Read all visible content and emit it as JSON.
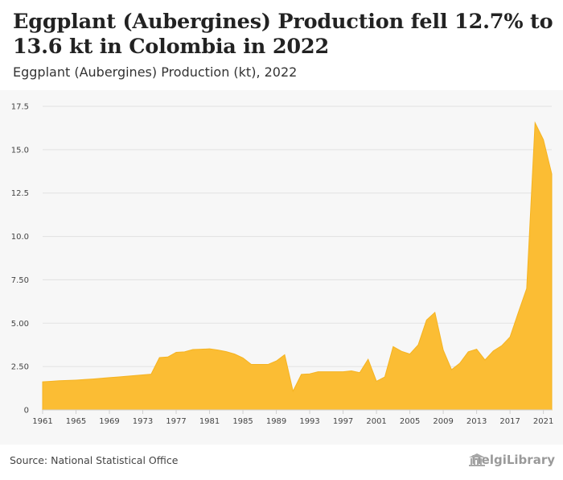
{
  "header": {
    "title": "Eggplant (Aubergines) Production fell 12.7% to 13.6 kt in Colombia in 2022",
    "subtitle": "Eggplant (Aubergines) Production (kt), 2022"
  },
  "footer": {
    "source": "Source: National Statistical Office",
    "brand": "HelgiLibrary"
  },
  "colors": {
    "area_fill": "#fbbd34",
    "area_stroke": "#f5b321",
    "grid": "#e2e2e2",
    "chart_bg": "#f7f7f7"
  },
  "icons": {
    "brand": "library-building-icon"
  },
  "chart_data": {
    "type": "area",
    "title": "",
    "xlabel": "",
    "ylabel": "",
    "ylim": [
      0,
      17.5
    ],
    "grid": true,
    "y_ticks": [
      0,
      2.5,
      5,
      7.5,
      10,
      12.5,
      15,
      17.5
    ],
    "y_tick_labels": [
      "0",
      "2.50",
      "5.00",
      "7.50",
      "10.0",
      "12.5",
      "15.0",
      "17.5"
    ],
    "x_ticks": [
      1961,
      1965,
      1969,
      1973,
      1977,
      1981,
      1985,
      1989,
      1993,
      1997,
      2001,
      2005,
      2009,
      2013,
      2017,
      2021
    ],
    "x": [
      1961,
      1962,
      1963,
      1964,
      1965,
      1966,
      1967,
      1968,
      1969,
      1970,
      1971,
      1972,
      1973,
      1974,
      1975,
      1976,
      1977,
      1978,
      1979,
      1980,
      1981,
      1982,
      1983,
      1984,
      1985,
      1986,
      1987,
      1988,
      1989,
      1990,
      1991,
      1992,
      1993,
      1994,
      1995,
      1996,
      1997,
      1998,
      1999,
      2000,
      2001,
      2002,
      2003,
      2004,
      2005,
      2006,
      2007,
      2008,
      2009,
      2010,
      2011,
      2012,
      2013,
      2014,
      2015,
      2016,
      2017,
      2018,
      2019,
      2020,
      2021,
      2022
    ],
    "series": [
      {
        "values": [
          1.62,
          1.65,
          1.68,
          1.7,
          1.72,
          1.75,
          1.78,
          1.82,
          1.86,
          1.9,
          1.94,
          1.98,
          2.02,
          2.06,
          3.02,
          3.05,
          3.32,
          3.35,
          3.48,
          3.5,
          3.52,
          3.45,
          3.36,
          3.22,
          3.0,
          2.62,
          2.62,
          2.62,
          2.82,
          3.18,
          1.08,
          2.05,
          2.08,
          2.2,
          2.2,
          2.2,
          2.2,
          2.25,
          2.15,
          2.92,
          1.65,
          1.9,
          3.65,
          3.38,
          3.22,
          3.75,
          5.18,
          5.62,
          3.45,
          2.32,
          2.7,
          3.35,
          3.5,
          2.88,
          3.4,
          3.7,
          4.2,
          5.62,
          7.0,
          16.55,
          15.58,
          13.6
        ]
      }
    ]
  }
}
